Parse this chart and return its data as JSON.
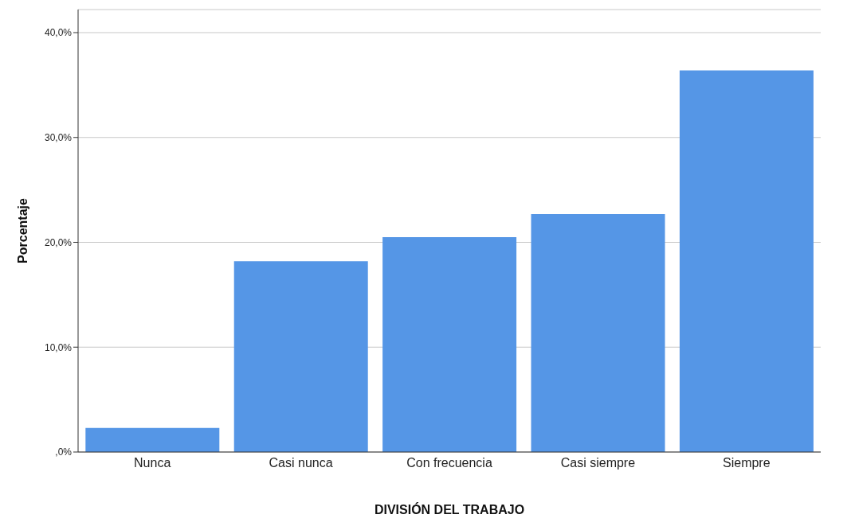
{
  "chart_data": {
    "type": "bar",
    "xlabel": "DIVISIÓN DEL TRABAJO",
    "ylabel": "Porcentaje",
    "categories": [
      "Nunca",
      "Casi nunca",
      "Con frecuencia",
      "Casi siempre",
      "Siempre"
    ],
    "values": [
      2.3,
      18.2,
      20.5,
      22.7,
      36.4
    ],
    "color": "#5596e6",
    "ylim": [
      0,
      42.2
    ],
    "yticks": [
      {
        "value": 0,
        "label": ",0%"
      },
      {
        "value": 10,
        "label": "10,0%"
      },
      {
        "value": 20,
        "label": "20,0%"
      },
      {
        "value": 30,
        "label": "30,0%"
      },
      {
        "value": 40,
        "label": "40,0%"
      }
    ],
    "grid": "y"
  }
}
